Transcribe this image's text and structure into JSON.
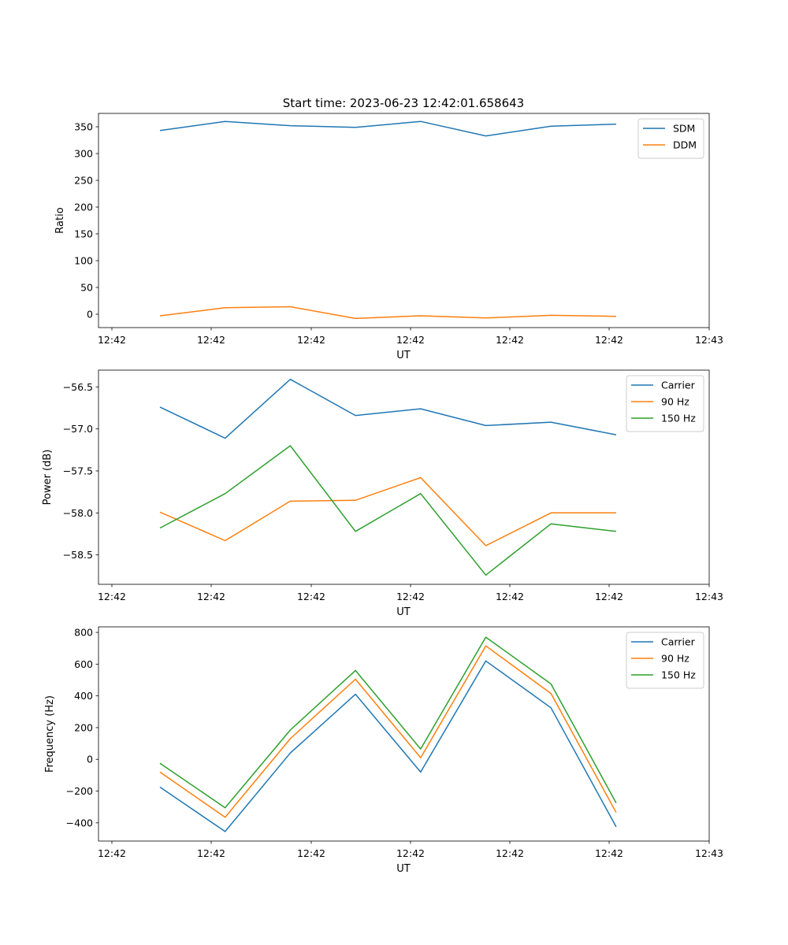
{
  "title": "Start time: 2023-06-23 12:42:01.658643",
  "chart_data": [
    {
      "type": "line",
      "title": "Start time: 2023-06-23 12:42:01.658643",
      "xlabel": "UT",
      "ylabel": "Ratio",
      "x": [
        1,
        2,
        3,
        4,
        5,
        6,
        7,
        8
      ],
      "xticklabels": [
        "12:42",
        "12:42",
        "12:42",
        "12:42",
        "12:42",
        "12:42",
        "12:42"
      ],
      "xlim_ticks": [
        "12:42",
        "12:43"
      ],
      "ylim": [
        -25,
        375
      ],
      "yticks": [
        0,
        50,
        100,
        150,
        200,
        250,
        300,
        350
      ],
      "legend": "top-right",
      "grid": false,
      "series": [
        {
          "name": "SDM",
          "color": "#1f77b4",
          "values": [
            343,
            360,
            352,
            349,
            360,
            333,
            351,
            355
          ]
        },
        {
          "name": "DDM",
          "color": "#ff7f0e",
          "values": [
            -3,
            12,
            14,
            -8,
            -3,
            -7,
            -2,
            -4
          ]
        }
      ]
    },
    {
      "type": "line",
      "title": "",
      "xlabel": "UT",
      "ylabel": "Power (dB)",
      "x": [
        1,
        2,
        3,
        4,
        5,
        6,
        7,
        8
      ],
      "xticklabels": [
        "12:42",
        "12:42",
        "12:42",
        "12:42",
        "12:42",
        "12:42",
        "12:42"
      ],
      "xlim_ticks": [
        "12:42",
        "12:43"
      ],
      "ylim": [
        -58.85,
        -56.3
      ],
      "yticks": [
        -56.5,
        -57.0,
        -57.5,
        -58.0,
        -58.5
      ],
      "yticklabels": [
        "−56.5",
        "−57.0",
        "−57.5",
        "−58.0",
        "−58.5"
      ],
      "legend": "top-right",
      "grid": false,
      "series": [
        {
          "name": "Carrier",
          "color": "#1f77b4",
          "values": [
            -56.74,
            -57.11,
            -56.41,
            -56.84,
            -56.76,
            -56.96,
            -56.92,
            -57.07
          ]
        },
        {
          "name": "90 Hz",
          "color": "#ff7f0e",
          "values": [
            -57.99,
            -58.33,
            -57.86,
            -57.85,
            -57.58,
            -58.39,
            -58.0,
            -58.0
          ]
        },
        {
          "name": "150 Hz",
          "color": "#2ca02c",
          "values": [
            -58.18,
            -57.77,
            -57.2,
            -58.22,
            -57.77,
            -58.74,
            -58.13,
            -58.22
          ]
        }
      ]
    },
    {
      "type": "line",
      "title": "",
      "xlabel": "UT",
      "ylabel": "Frequency (Hz)",
      "x": [
        1,
        2,
        3,
        4,
        5,
        6,
        7,
        8
      ],
      "xticklabels": [
        "12:42",
        "12:42",
        "12:42",
        "12:42",
        "12:42",
        "12:42",
        "12:42"
      ],
      "xlim_ticks": [
        "12:42",
        "12:43"
      ],
      "ylim": [
        -515,
        835
      ],
      "yticks": [
        -400,
        -200,
        0,
        200,
        400,
        600,
        800
      ],
      "yticklabels": [
        "−400",
        "−200",
        "0",
        "200",
        "400",
        "600",
        "800"
      ],
      "legend": "top-right",
      "grid": false,
      "series": [
        {
          "name": "Carrier",
          "color": "#1f77b4",
          "values": [
            -175,
            -455,
            40,
            410,
            -80,
            620,
            325,
            -425
          ]
        },
        {
          "name": "90 Hz",
          "color": "#ff7f0e",
          "values": [
            -80,
            -365,
            130,
            505,
            10,
            715,
            415,
            -335
          ]
        },
        {
          "name": "150 Hz",
          "color": "#2ca02c",
          "values": [
            -25,
            -305,
            185,
            560,
            65,
            770,
            475,
            -275
          ]
        }
      ]
    }
  ]
}
